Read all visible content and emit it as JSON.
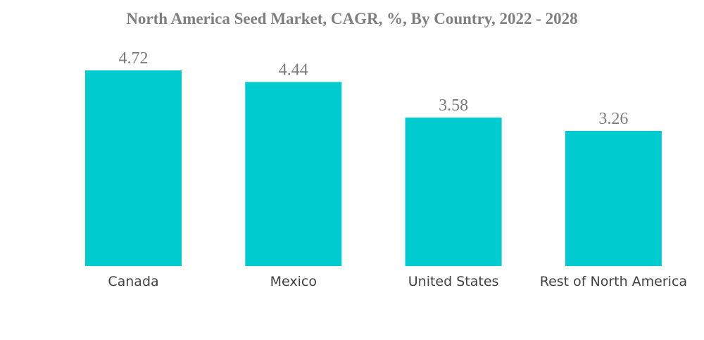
{
  "chart_data": {
    "type": "bar",
    "title": "North America Seed Market, CAGR, %, By Country, 2022 - 2028",
    "categories": [
      "Canada",
      "Mexico",
      "United States",
      "Rest of North America"
    ],
    "values": [
      4.72,
      4.44,
      3.58,
      3.26
    ],
    "xlabel": "",
    "ylabel": "",
    "ylim": [
      0,
      4.72
    ],
    "bar_color": "#00ccd0",
    "grid": false,
    "legend": "none"
  }
}
